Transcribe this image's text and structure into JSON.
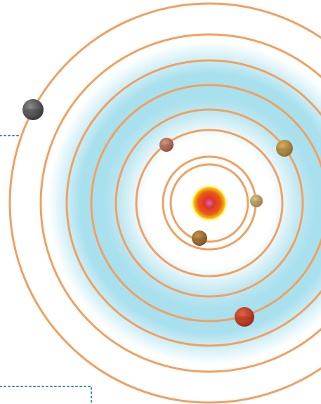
{
  "colors": {
    "background": "#ffffff",
    "orbit": "#f0a060",
    "habitable_zone": "#a8e0ee",
    "leader_line": "#3a8aa8",
    "star_core": "#d43a28",
    "star_corona": "#ffd800"
  },
  "star": {
    "name": "star",
    "colors": [
      "#c86ad0",
      "#e03428",
      "#f07a10",
      "#ffd800"
    ]
  },
  "orbits": [
    {
      "name": "orbit-1",
      "order": 1
    },
    {
      "name": "orbit-2",
      "order": 2
    },
    {
      "name": "orbit-3",
      "order": 3
    },
    {
      "name": "orbit-4",
      "order": 4
    },
    {
      "name": "orbit-5",
      "order": 5
    },
    {
      "name": "orbit-6",
      "order": 6
    },
    {
      "name": "orbit-7",
      "order": 7
    },
    {
      "name": "orbit-8",
      "order": 8
    }
  ],
  "planets": [
    {
      "name": "planet-1",
      "orbit": 1,
      "colors": [
        "#d8c08a",
        "#9a7a48"
      ]
    },
    {
      "name": "planet-2",
      "orbit": 2,
      "colors": [
        "#c8924a",
        "#7a5020"
      ]
    },
    {
      "name": "planet-3",
      "orbit": 3,
      "colors": [
        "#d89a7a",
        "#8a4a3a"
      ]
    },
    {
      "name": "planet-4",
      "orbit": 5,
      "colors": [
        "#d8b060",
        "#8a6a28"
      ]
    },
    {
      "name": "planet-5",
      "orbit": 6,
      "colors": [
        "#e86040",
        "#9a2a18"
      ]
    },
    {
      "name": "planet-6",
      "orbit": 8,
      "colors": [
        "#8a8a8a",
        "#333333"
      ]
    }
  ]
}
